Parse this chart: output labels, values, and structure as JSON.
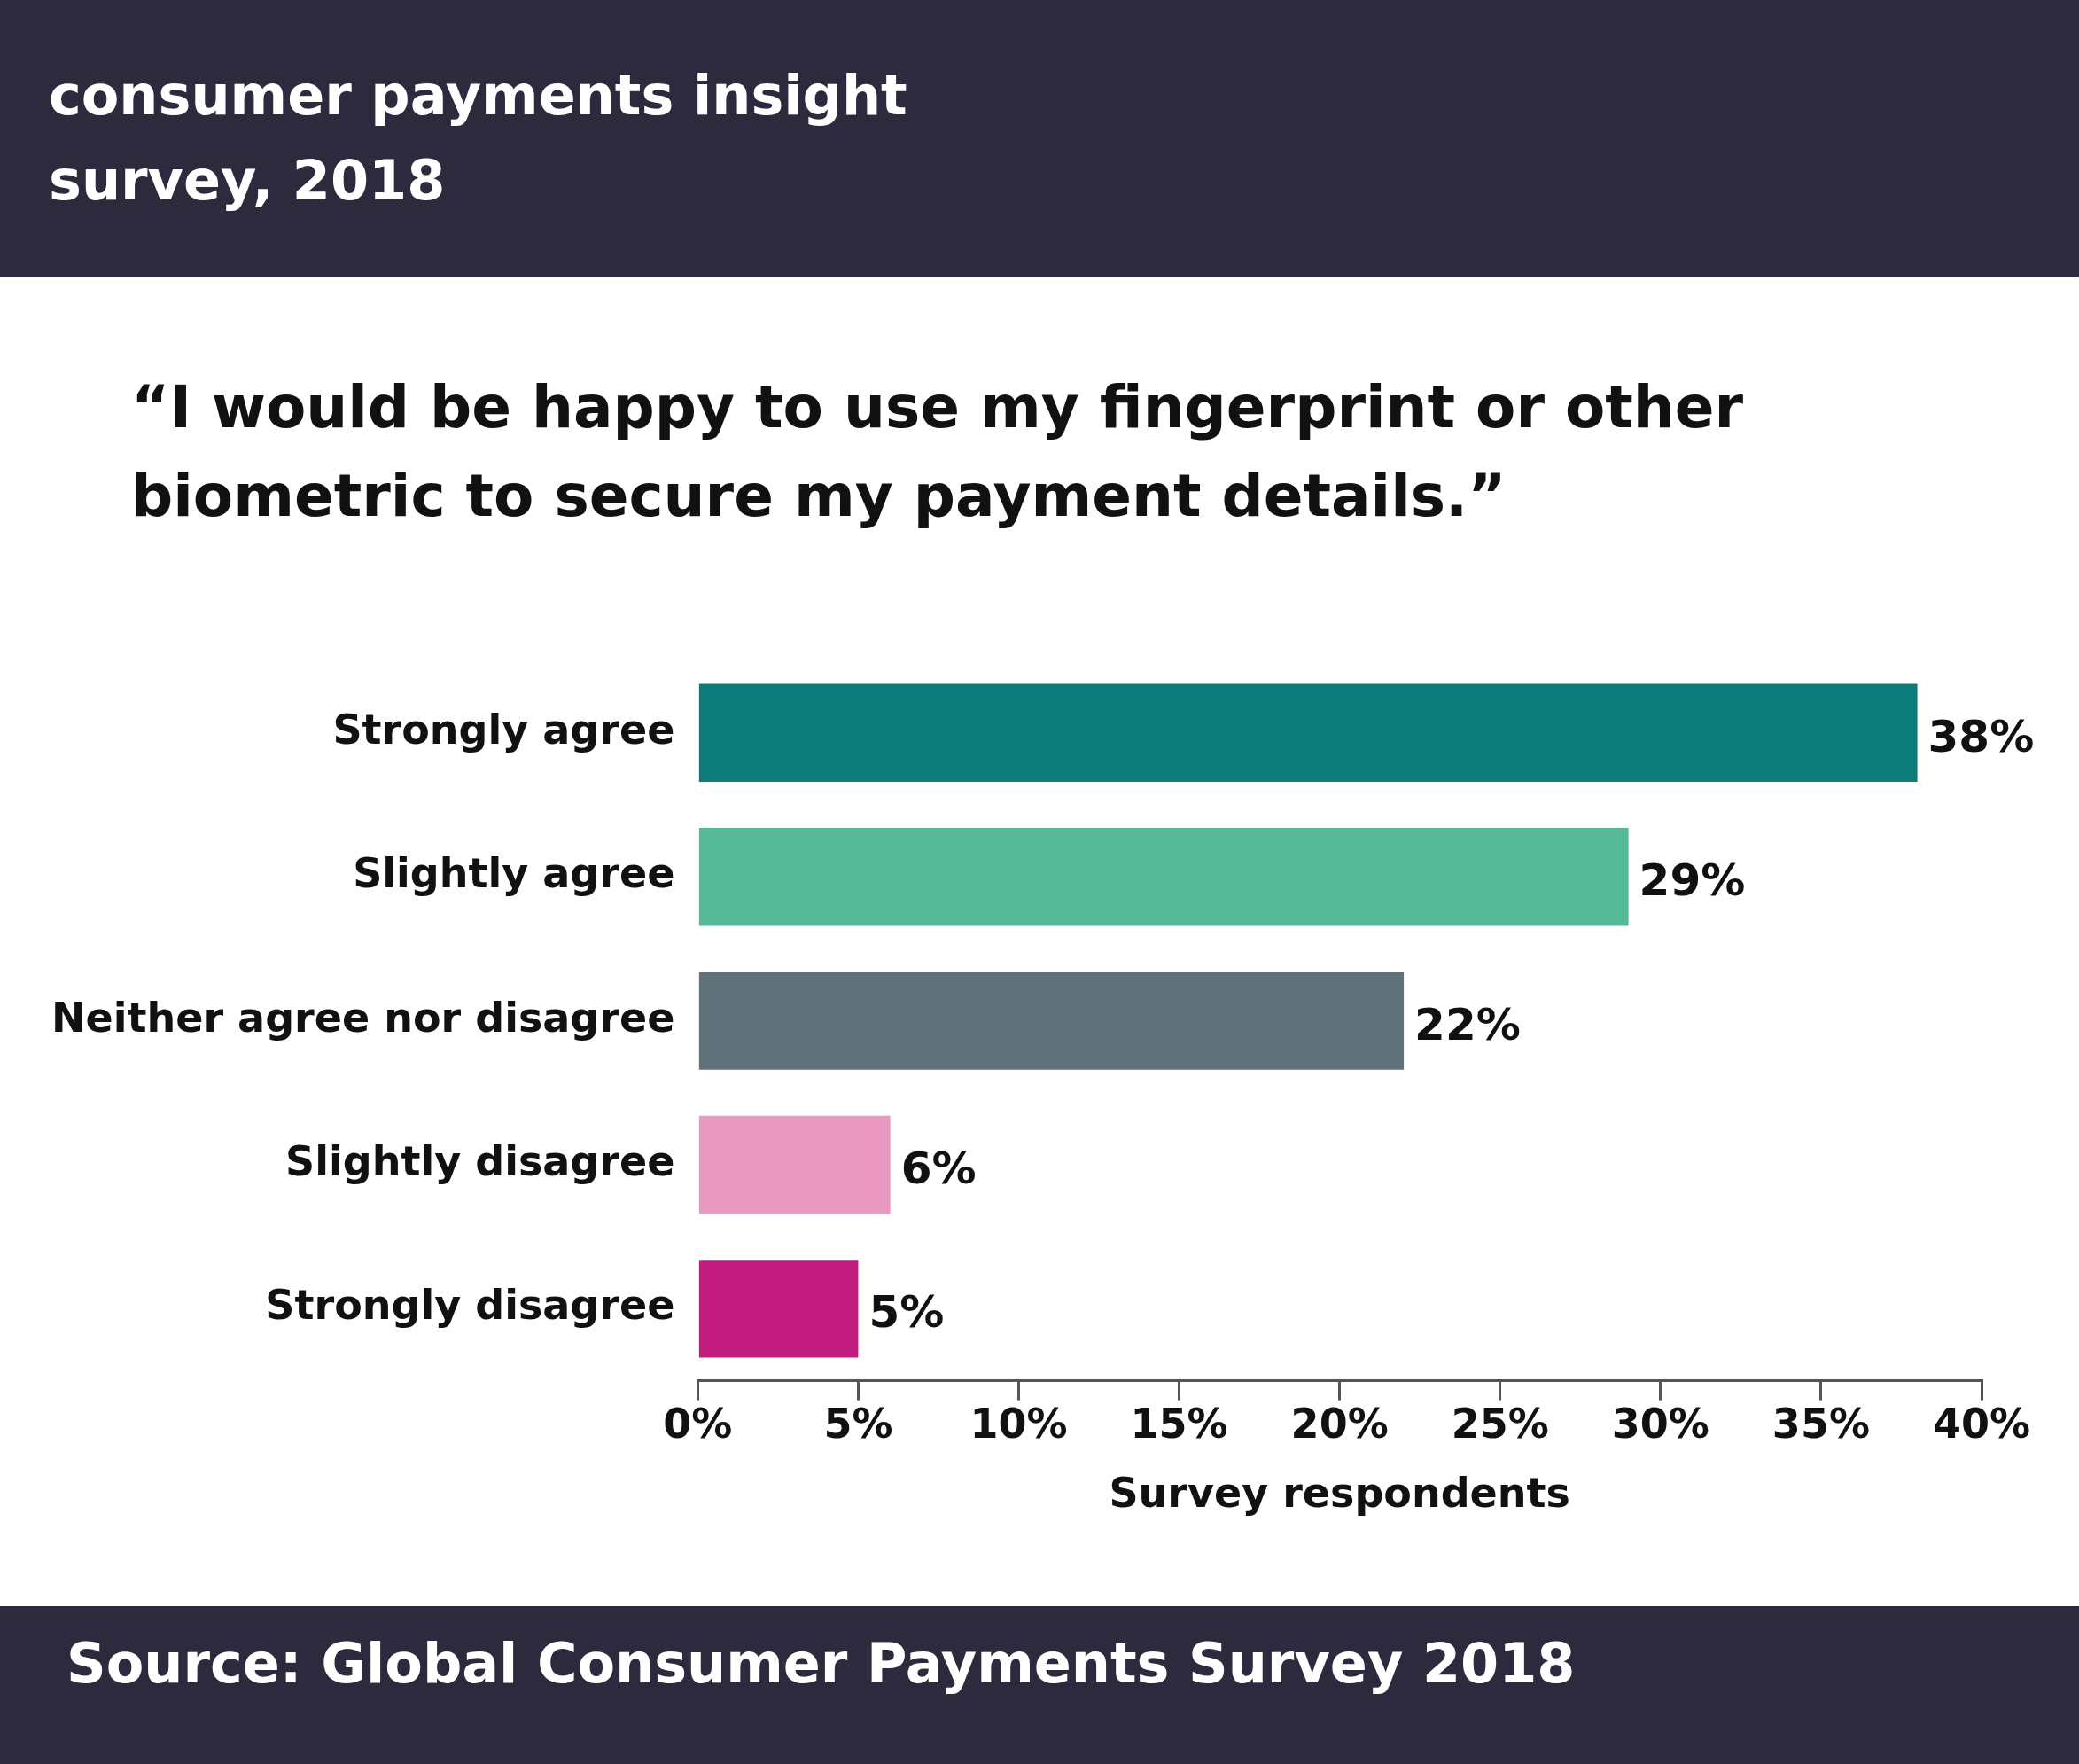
{
  "chart_data": {
    "type": "bar",
    "orientation": "horizontal",
    "title": "consumer payments insight survey, 2018",
    "subtitle": "“I would be happy to use my fingerprint or other biometric to secure my payment details.”",
    "categories": [
      "Strongly agree",
      "Slightly agree",
      "Neither agree nor disagree",
      "Slightly disagree",
      "Strongly disagree"
    ],
    "values": [
      38,
      29,
      22,
      6,
      5
    ],
    "value_labels": [
      "38%",
      "29%",
      "22%",
      "6%",
      "5%"
    ],
    "colors": [
      "#0e7b7b",
      "#56ba98",
      "#62727b",
      "#e999c0",
      "#c21b7f"
    ],
    "xlim": [
      0,
      40
    ],
    "xticks": [
      {
        "value": 0,
        "label": "0%"
      },
      {
        "value": 5,
        "label": "5%"
      },
      {
        "value": 10,
        "label": "10%"
      },
      {
        "value": 15,
        "label": "15%"
      },
      {
        "value": 20,
        "label": "20%"
      },
      {
        "value": 25,
        "label": "25%"
      },
      {
        "value": 30,
        "label": "30%"
      },
      {
        "value": 35,
        "label": "35%"
      },
      {
        "value": 40,
        "label": "40%"
      }
    ],
    "xlabel": "Survey respondents",
    "grid": false,
    "legend": false,
    "annotations": [
      "Source: Global Consumer Payments Survey 2018"
    ]
  }
}
